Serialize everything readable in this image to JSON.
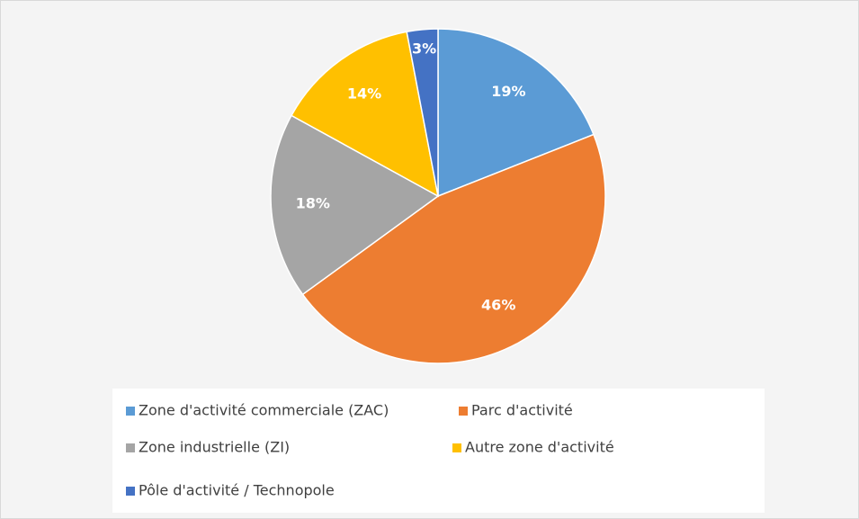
{
  "chart_data": {
    "type": "pie",
    "categories": [
      "Zone d'activité commerciale (ZAC)",
      "Parc d'activité",
      "Zone industrielle (ZI)",
      "Autre zone d'activité",
      "Pôle d'activité / Technopole"
    ],
    "values": [
      19,
      46,
      18,
      14,
      3
    ],
    "value_labels": [
      "19%",
      "46%",
      "18%",
      "14%",
      "3%"
    ],
    "colors": [
      "#5b9bd5",
      "#ed7d31",
      "#a5a5a5",
      "#ffc000",
      "#4472c4"
    ],
    "legend": "bottom"
  }
}
